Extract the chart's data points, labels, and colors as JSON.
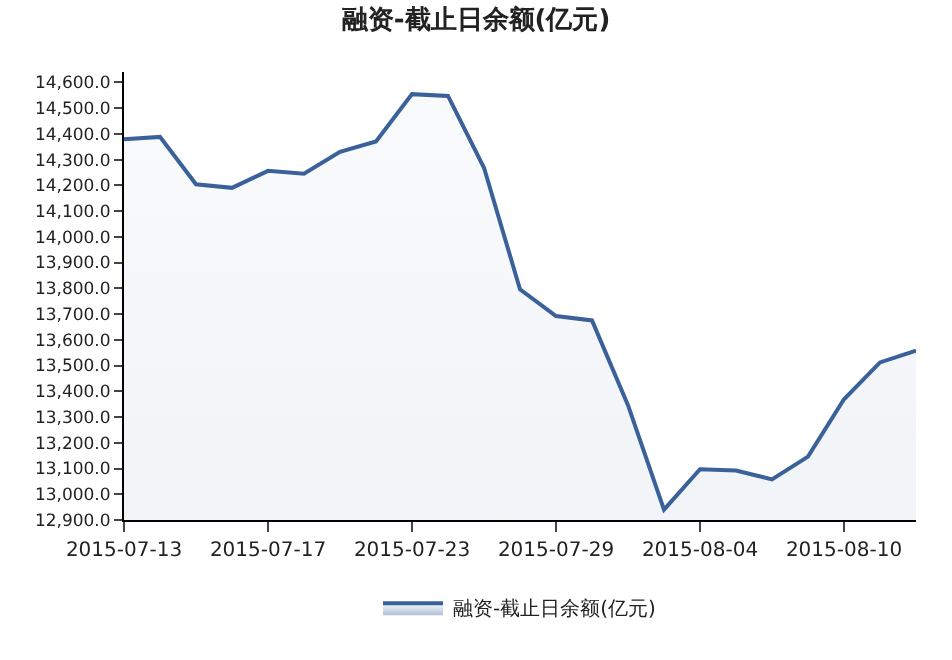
{
  "chart_data": {
    "type": "area",
    "title": "融资-截止日余额(亿元)",
    "categories": [
      "2015-07-13",
      null,
      null,
      null,
      "2015-07-17",
      null,
      null,
      null,
      "2015-07-23",
      null,
      null,
      null,
      "2015-07-29",
      null,
      null,
      null,
      "2015-08-04",
      null,
      null,
      null,
      "2015-08-10",
      null,
      null
    ],
    "series": [
      {
        "name": "融资-截止日余额(亿元)",
        "color": "#3a6199",
        "values": [
          14379,
          14388,
          14204,
          14190,
          14256,
          14245,
          14330,
          14370,
          14554,
          14547,
          14268,
          13796,
          13692,
          13675,
          13346,
          12940,
          13097,
          13092,
          13058,
          13146,
          13369,
          13512,
          13558
        ]
      }
    ],
    "ylim": [
      12900,
      14640
    ],
    "yticks": [
      {
        "value": 12900,
        "label": "12,900.0"
      },
      {
        "value": 13000,
        "label": "13,000.0"
      },
      {
        "value": 13100,
        "label": "13,100.0"
      },
      {
        "value": 13200,
        "label": "13,200.0"
      },
      {
        "value": 13300,
        "label": "13,300.0"
      },
      {
        "value": 13400,
        "label": "13,400.0"
      },
      {
        "value": 13500,
        "label": "13,500.0"
      },
      {
        "value": 13600,
        "label": "13,600.0"
      },
      {
        "value": 13700,
        "label": "13,700.0"
      },
      {
        "value": 13800,
        "label": "13,800.0"
      },
      {
        "value": 13900,
        "label": "13,900.0"
      },
      {
        "value": 14000,
        "label": "14,000.0"
      },
      {
        "value": 14100,
        "label": "14,100.0"
      },
      {
        "value": 14200,
        "label": "14,200.0"
      },
      {
        "value": 14300,
        "label": "14,300.0"
      },
      {
        "value": 14400,
        "label": "14,400.0"
      },
      {
        "value": 14500,
        "label": "14,500.0"
      },
      {
        "value": 14600,
        "label": "14,600.0"
      }
    ],
    "legend": "bottom",
    "marker": "none",
    "line_style": "solid"
  }
}
